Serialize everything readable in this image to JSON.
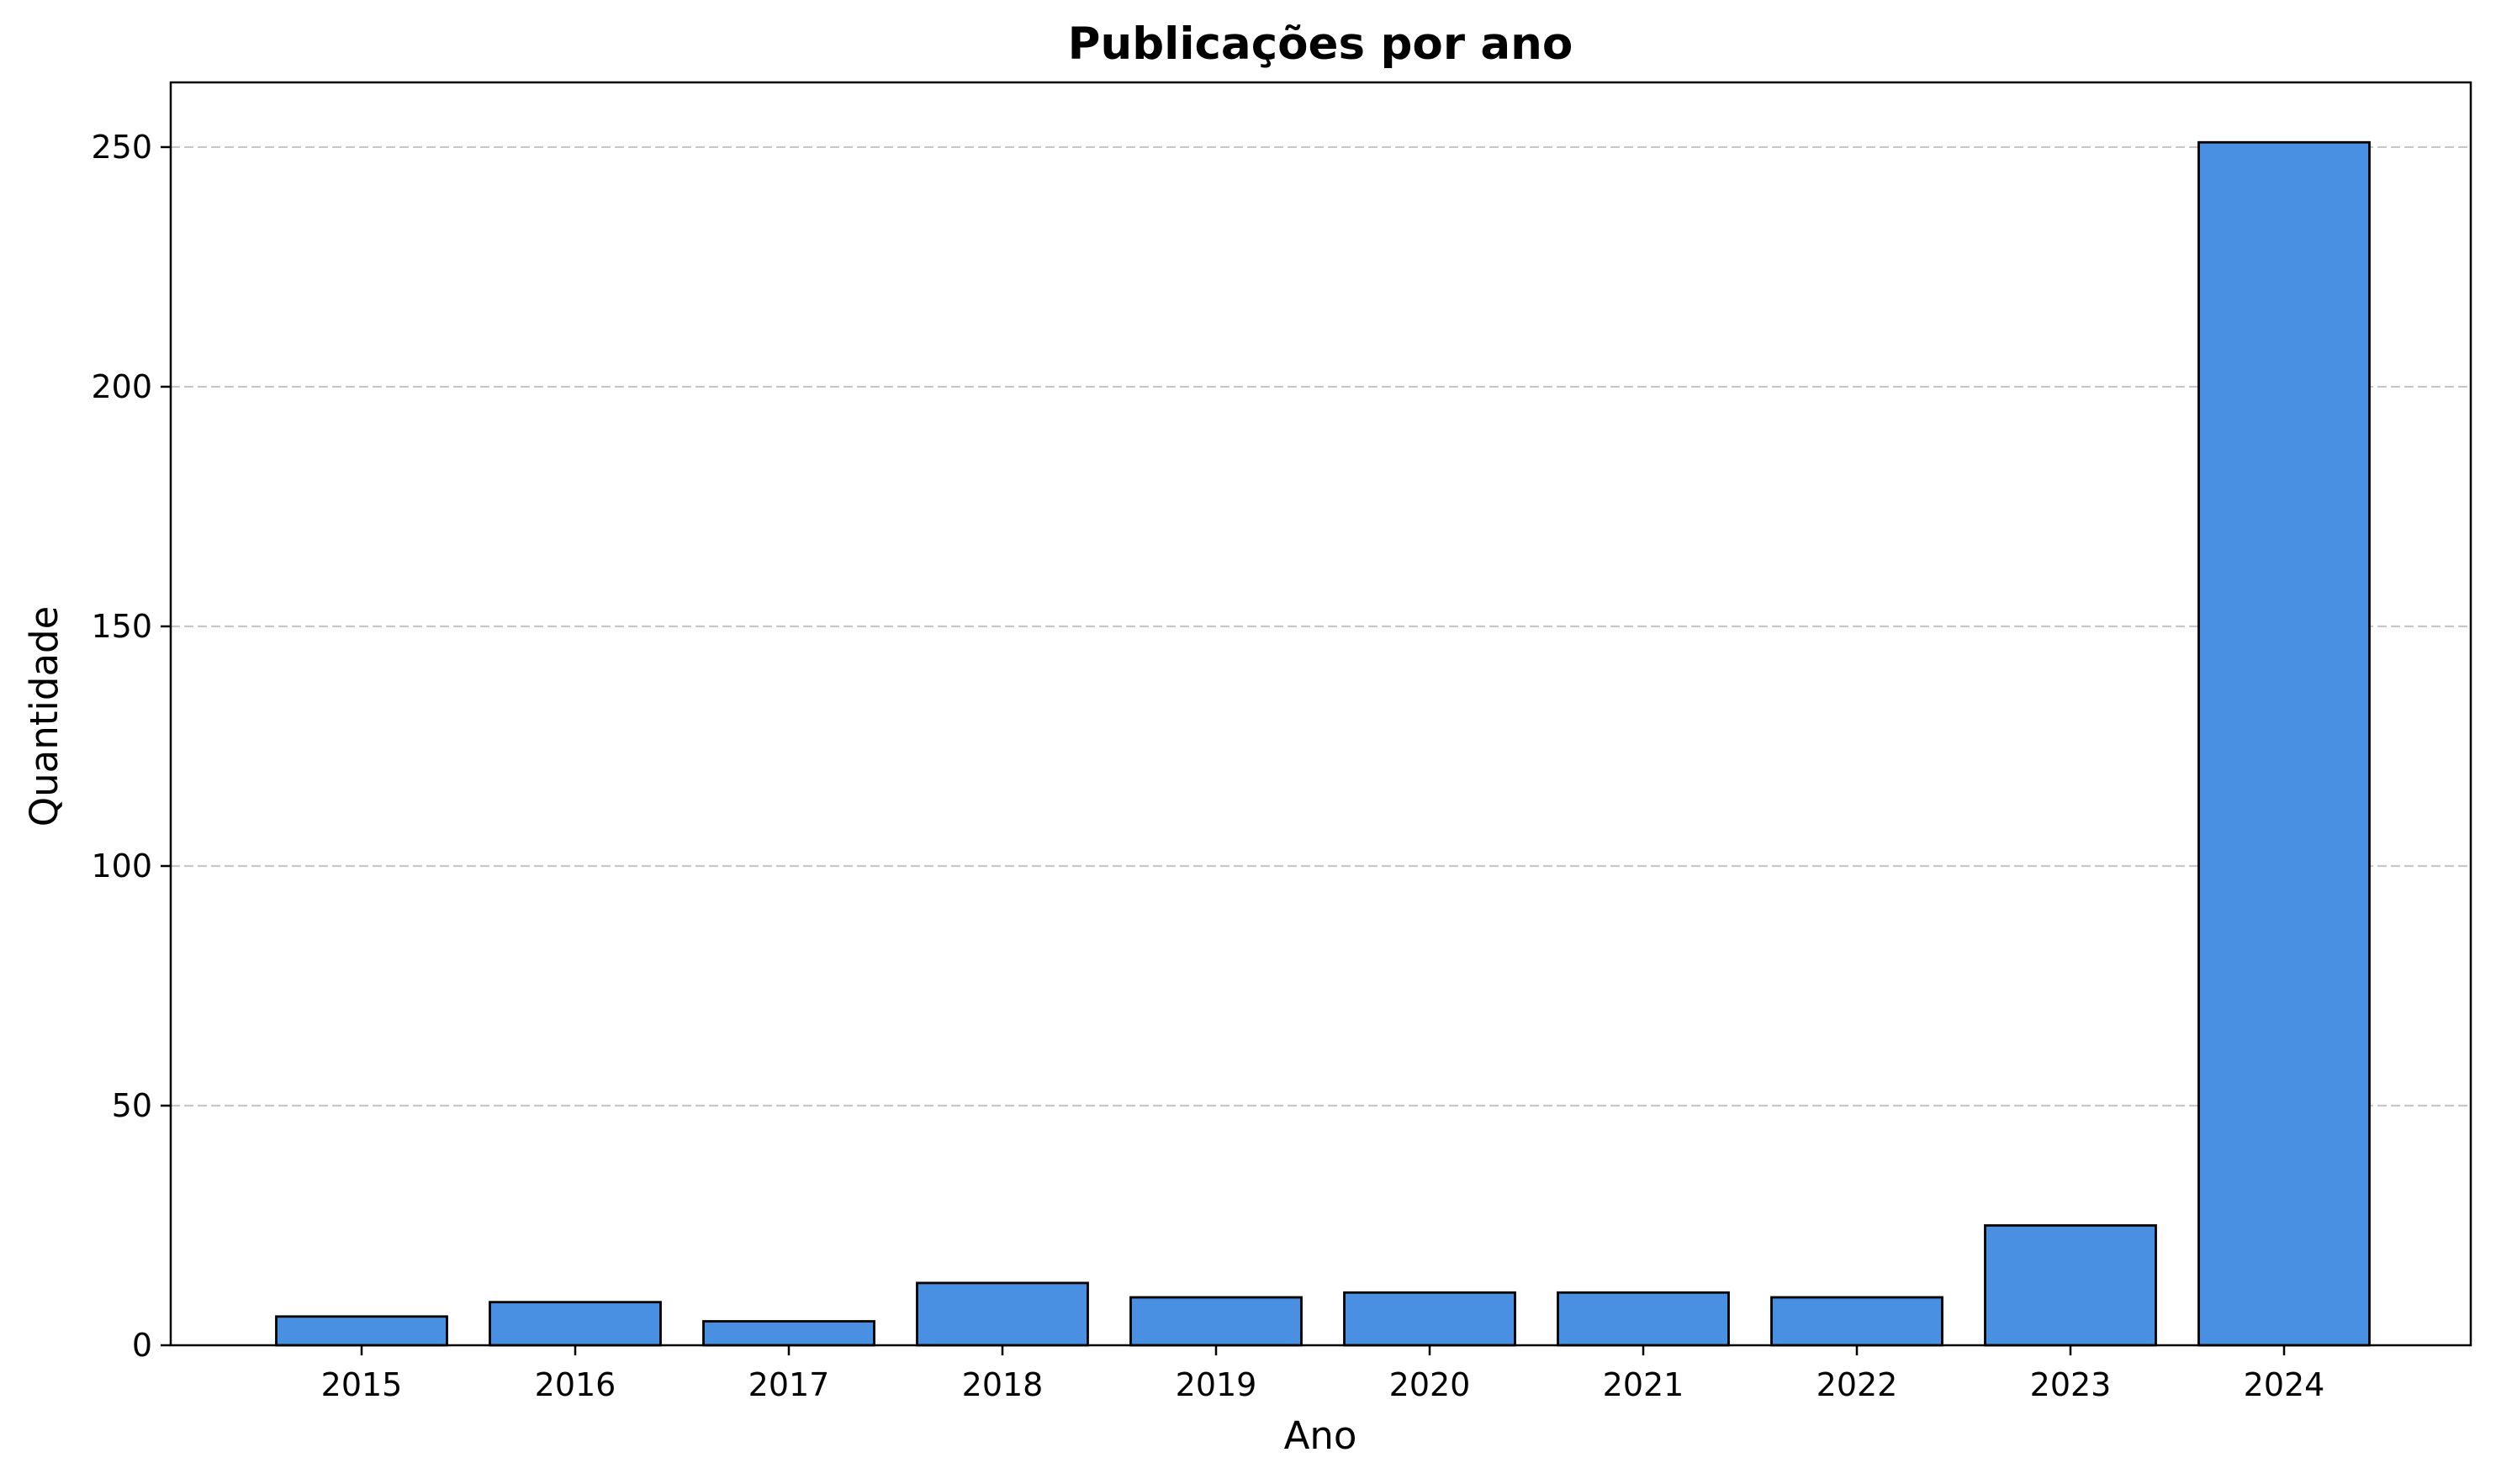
{
  "chart_data": {
    "type": "bar",
    "title": "Publicações por ano",
    "xlabel": "Ano",
    "ylabel": "Quantidade",
    "categories": [
      "2015",
      "2016",
      "2017",
      "2018",
      "2019",
      "2020",
      "2021",
      "2022",
      "2023",
      "2024"
    ],
    "values": [
      6,
      9,
      5,
      13,
      10,
      11,
      11,
      10,
      25,
      251
    ],
    "ylim": [
      0,
      263.5
    ],
    "yticks": [
      0,
      50,
      100,
      150,
      200,
      250
    ],
    "grid": "y-dashed",
    "legend": "none",
    "colors": {
      "bar": "#4a90e2",
      "bar_edge": "#000000",
      "grid": "#c7c7c7"
    }
  }
}
